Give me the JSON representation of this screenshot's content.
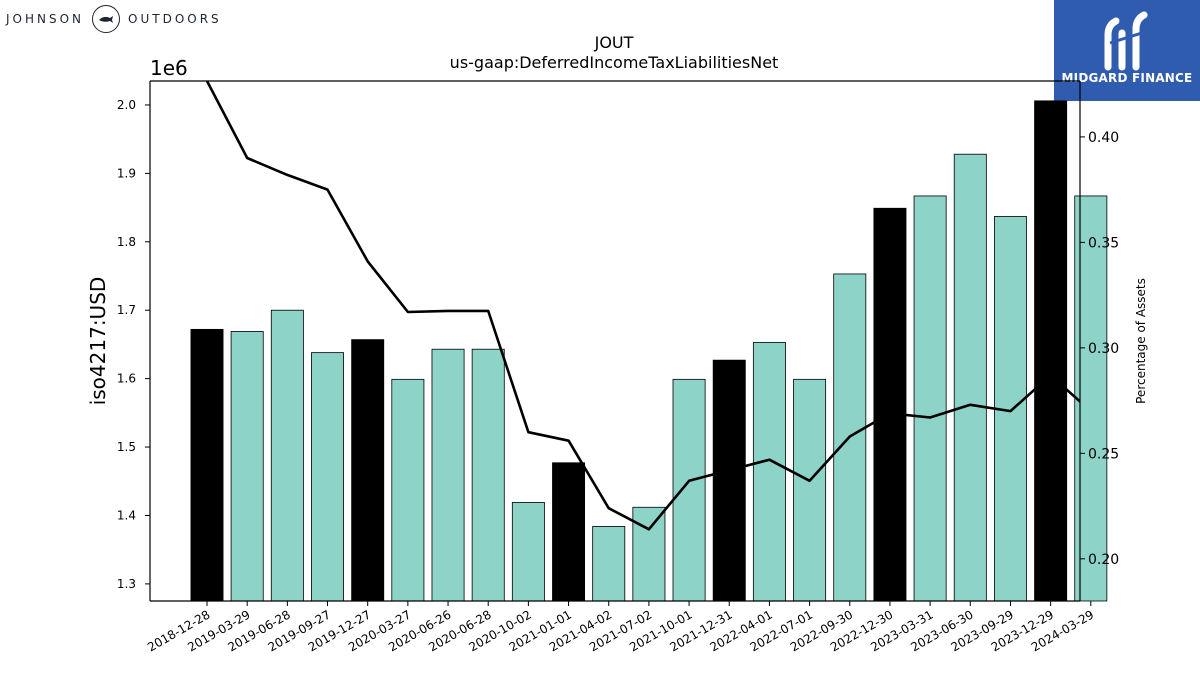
{
  "branding": {
    "left_logo": {
      "word1": "JOHNSON",
      "word2": "OUTDOORS"
    },
    "right_logo": {
      "name": "MIDGARD FINANCE",
      "color": "#2f5caf"
    }
  },
  "chart_data": {
    "type": "bar",
    "title": "JOUT",
    "subtitle": "us-gaap:DeferredIncomeTaxLiabilitiesNet",
    "ylabel": "iso4217:USD",
    "y2label": "Percentage of Assets",
    "y_offset_label": "1e6",
    "ylim": [
      1275000,
      2035000
    ],
    "y_ticks": [
      1300000,
      1400000,
      1500000,
      1600000,
      1700000,
      1800000,
      1900000,
      2000000
    ],
    "y_tick_labels": [
      "1.3",
      "1.4",
      "1.5",
      "1.6",
      "1.7",
      "1.8",
      "1.9",
      "2.0"
    ],
    "y2lim": [
      0.18,
      0.4265
    ],
    "y2_ticks": [
      0.2,
      0.25,
      0.3,
      0.35,
      0.4
    ],
    "y2_tick_labels": [
      "0.20",
      "0.25",
      "0.30",
      "0.35",
      "0.40"
    ],
    "categories": [
      "2018-12-28",
      "2019-03-29",
      "2019-06-28",
      "2019-09-27",
      "2019-12-27",
      "2020-03-27",
      "2020-06-26",
      "2020-06-28",
      "2020-10-02",
      "2021-01-01",
      "2021-04-02",
      "2021-07-02",
      "2021-10-01",
      "2021-12-31",
      "2022-04-01",
      "2022-07-01",
      "2022-09-30",
      "2022-12-30",
      "2023-03-31",
      "2023-06-30",
      "2023-09-29",
      "2023-12-29",
      "2024-03-29"
    ],
    "series": [
      {
        "type": "bar",
        "values": [
          1672000,
          1669000,
          1700000,
          1638000,
          1657000,
          1599000,
          1643000,
          1643000,
          1419000,
          1477000,
          1384000,
          1412000,
          1599000,
          1627000,
          1653000,
          1599000,
          1753000,
          1849000,
          1867000,
          1928000,
          1837000,
          2006000,
          1867000
        ],
        "highlight": [
          true,
          false,
          false,
          false,
          true,
          false,
          false,
          false,
          false,
          true,
          false,
          false,
          false,
          true,
          false,
          false,
          false,
          true,
          false,
          false,
          false,
          true,
          false
        ]
      },
      {
        "type": "line",
        "axis": "right",
        "values": [
          0.4265,
          0.39,
          0.382,
          0.375,
          0.341,
          0.317,
          0.3175,
          0.3175,
          0.26,
          0.256,
          0.224,
          0.214,
          0.237,
          0.242,
          0.247,
          0.237,
          0.258,
          0.269,
          0.267,
          0.273,
          0.27,
          0.287,
          0.27
        ]
      }
    ],
    "colors": {
      "bar": "#8dd3c7",
      "bar_highlight": "#000000",
      "line": "#000000"
    },
    "grid": false,
    "legend": "none"
  }
}
